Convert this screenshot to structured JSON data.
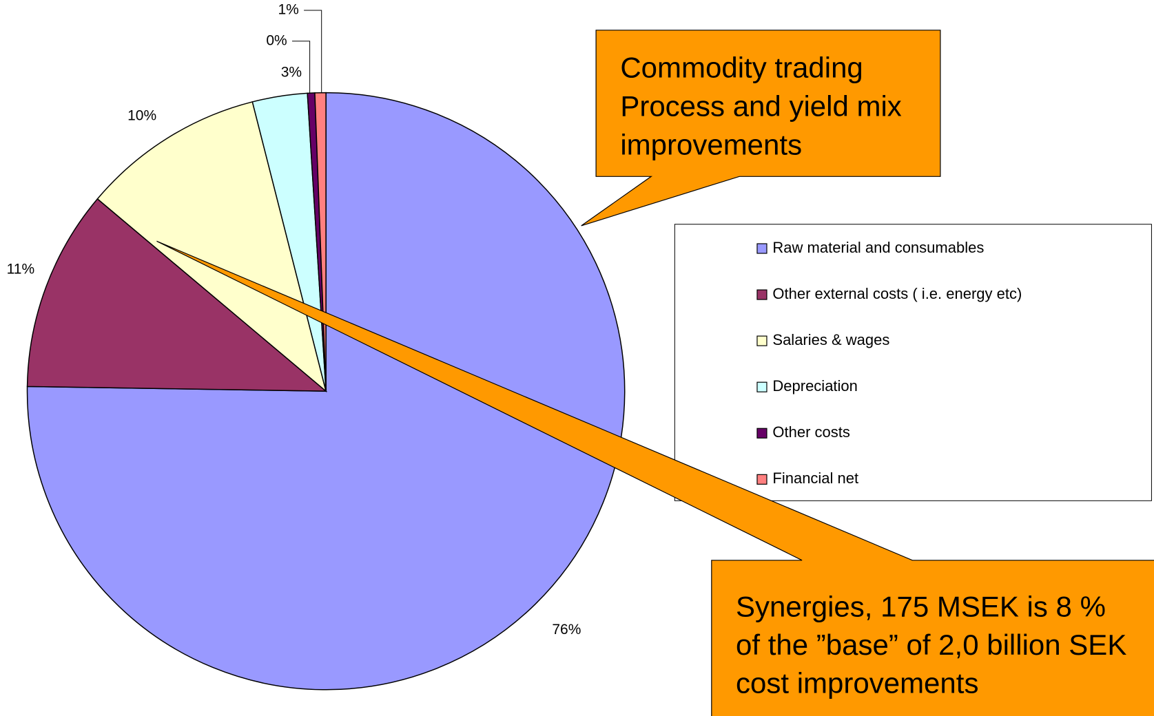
{
  "chart_data": {
    "type": "pie",
    "categories": [
      "Raw material and consumables",
      "Other external costs ( i.e. energy etc)",
      "Salaries & wages",
      "Depreciation",
      "Other costs",
      "Financial net"
    ],
    "values": [
      76,
      11,
      10,
      3,
      0.4,
      0.6
    ],
    "value_labels": [
      "76%",
      "11%",
      "10%",
      "3%",
      "0%",
      "1%"
    ],
    "colors": [
      "#9999ff",
      "#993366",
      "#ffffcc",
      "#ccffff",
      "#660066",
      "#ff8080"
    ],
    "legend": "right",
    "annotations": [
      {
        "lines": [
          "Commodity trading",
          "Process and yield mix",
          "improvements"
        ]
      },
      {
        "lines": [
          "Synergies, 175 MSEK is 8 %",
          "of the ”base” of 2,0 billion SEK",
          " cost improvements"
        ]
      }
    ]
  }
}
